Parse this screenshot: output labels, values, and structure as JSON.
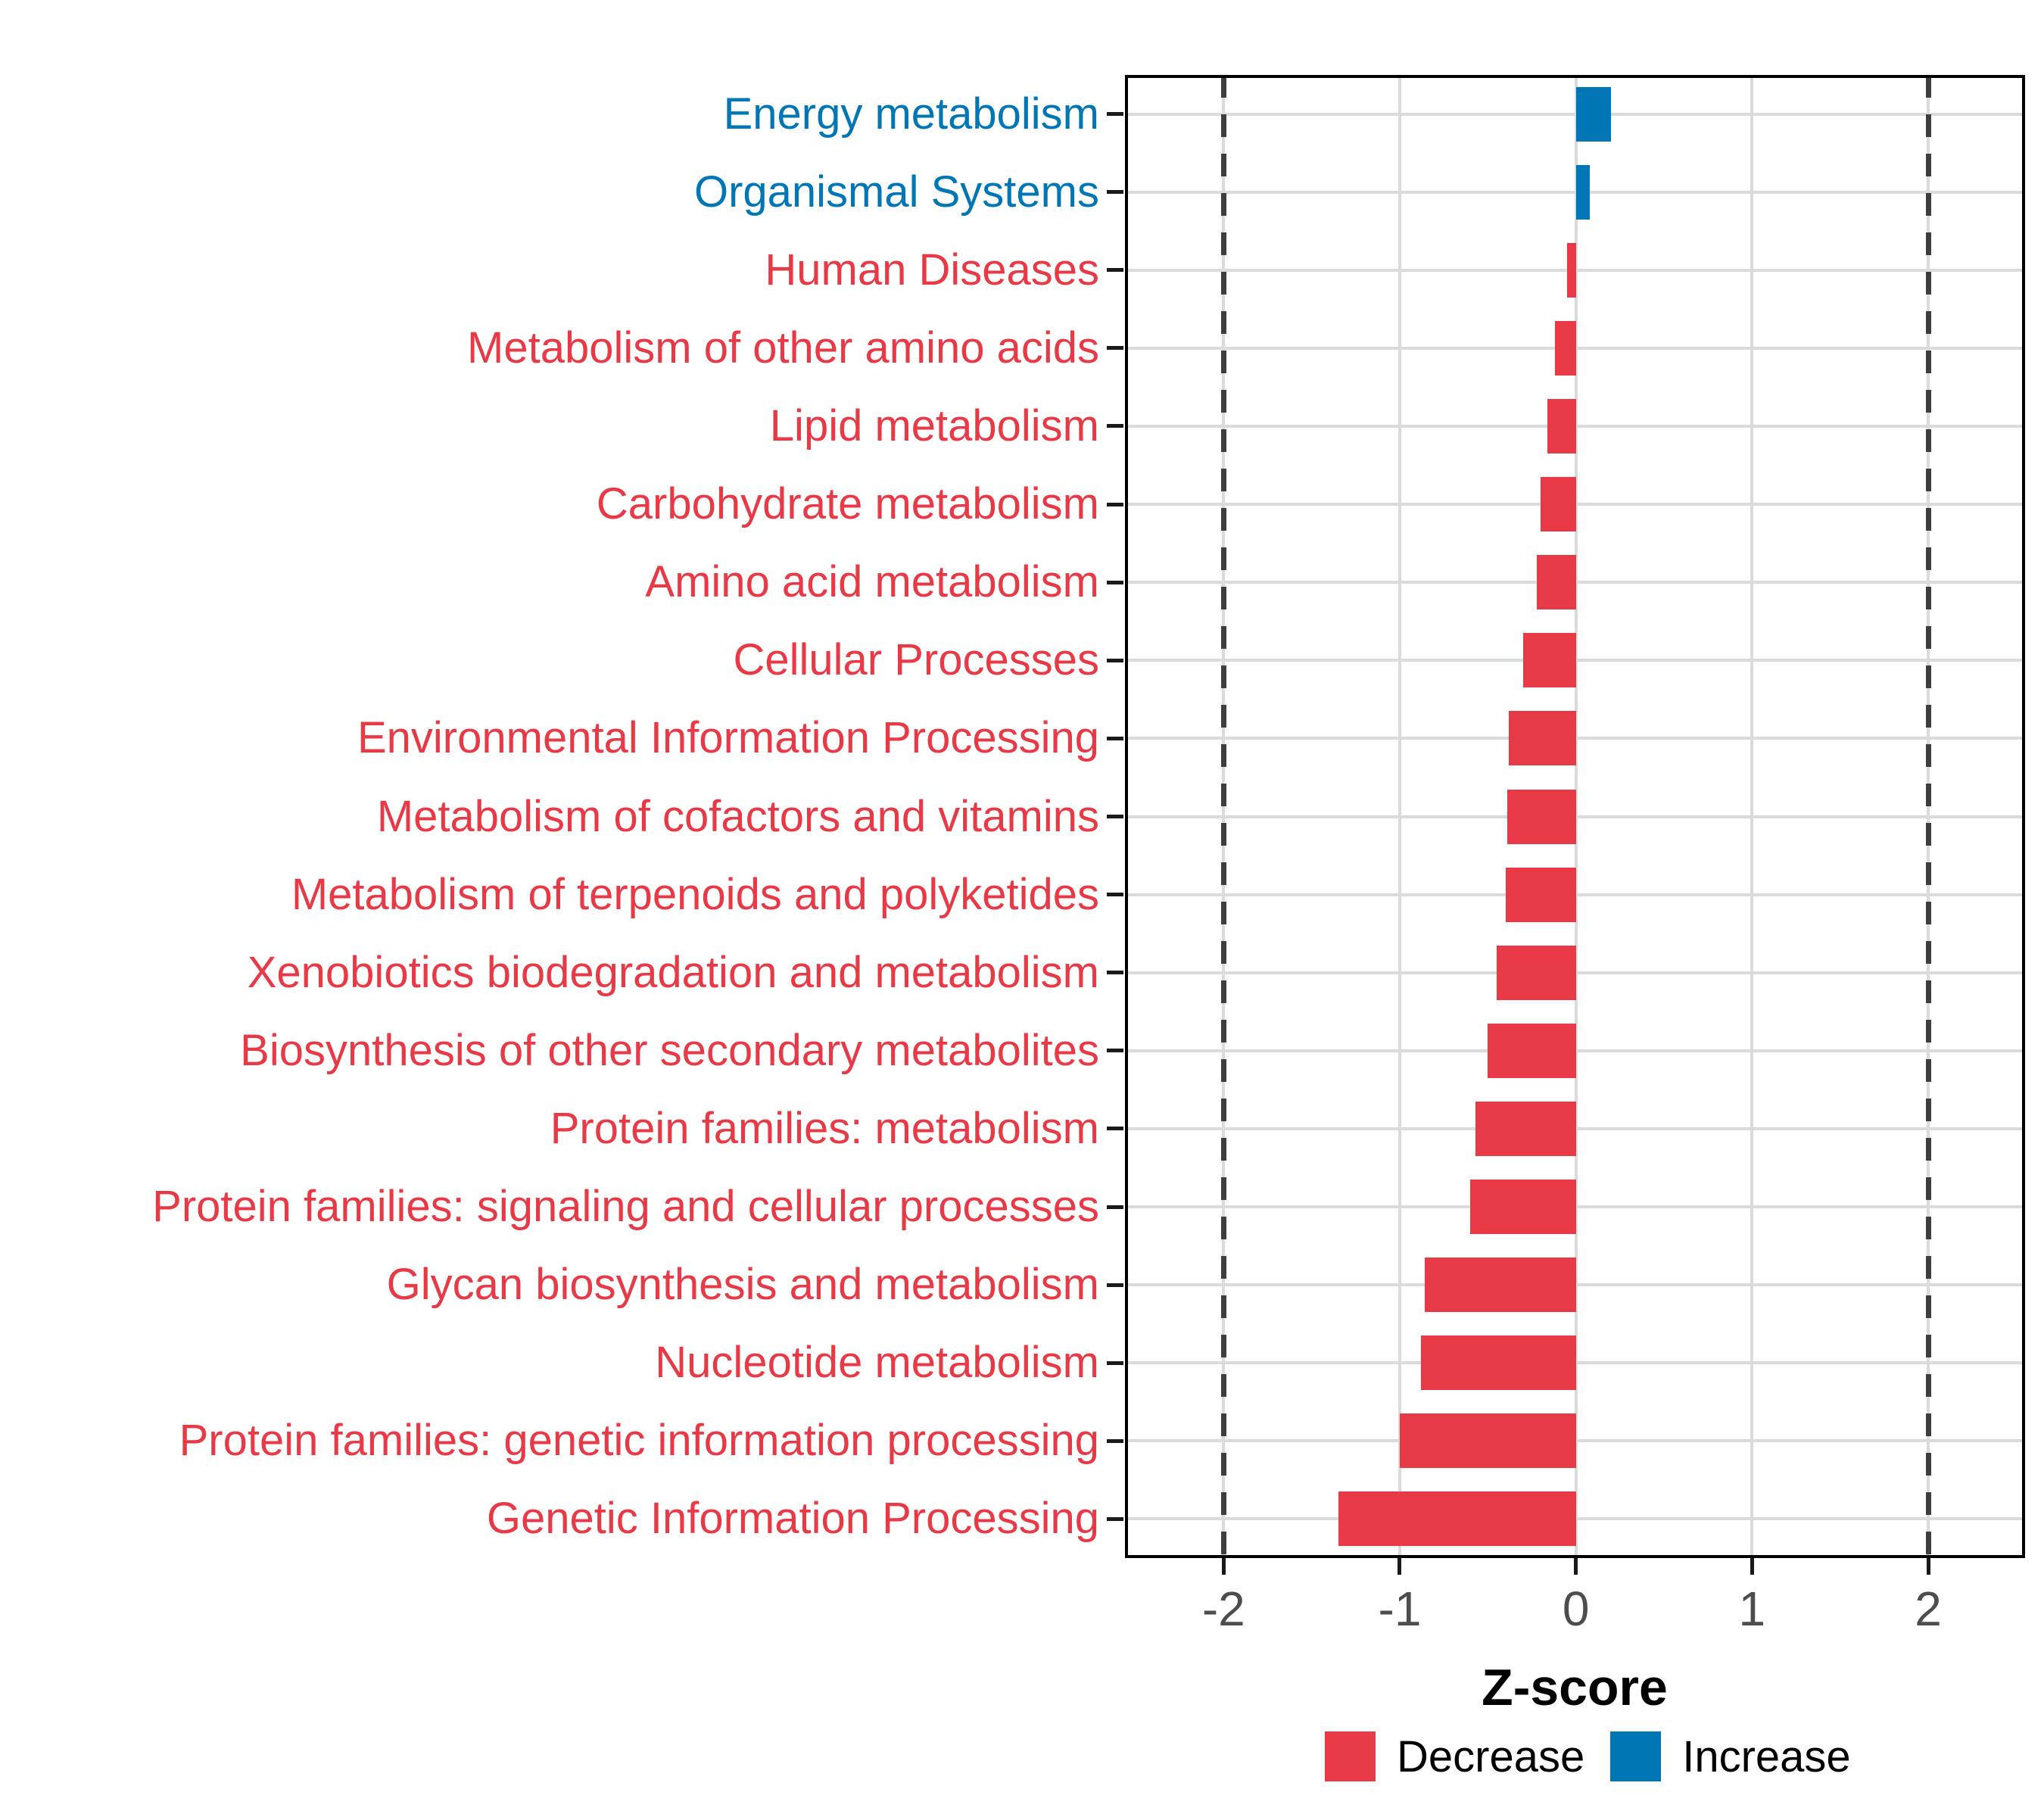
{
  "chart_data": {
    "type": "bar",
    "orientation": "horizontal",
    "title": "",
    "xlabel": "Z-score",
    "ylabel": "",
    "xlim": [
      -2.56,
      2.55
    ],
    "xticks": [
      -2,
      -1,
      0,
      1,
      2
    ],
    "xtick_labels": [
      "-2",
      "-1",
      "0",
      "1",
      "2"
    ],
    "grid": "major",
    "reference_lines": {
      "style": "dashed",
      "x": [
        -2,
        2
      ]
    },
    "legend_position": "bottom",
    "categories": [
      "Energy metabolism",
      "Organismal Systems",
      "Human Diseases",
      "Metabolism of other amino acids",
      "Lipid metabolism",
      "Carbohydrate metabolism",
      "Amino acid metabolism",
      "Cellular Processes",
      "Environmental Information Processing",
      "Metabolism of cofactors and vitamins",
      "Metabolism of terpenoids and polyketides",
      "Xenobiotics biodegradation and metabolism",
      "Biosynthesis of other secondary metabolites",
      "Protein families: metabolism",
      "Protein families: signaling and cellular processes",
      "Glycan biosynthesis and metabolism",
      "Nucleotide metabolism",
      "Protein families: genetic information processing",
      "Genetic Information Processing"
    ],
    "values": [
      0.2,
      0.08,
      -0.05,
      -0.12,
      -0.16,
      -0.2,
      -0.22,
      -0.3,
      -0.38,
      -0.39,
      -0.4,
      -0.45,
      -0.5,
      -0.57,
      -0.6,
      -0.86,
      -0.88,
      -1.0,
      -1.35
    ],
    "groups": [
      "increase",
      "increase",
      "decrease",
      "decrease",
      "decrease",
      "decrease",
      "decrease",
      "decrease",
      "decrease",
      "decrease",
      "decrease",
      "decrease",
      "decrease",
      "decrease",
      "decrease",
      "decrease",
      "decrease",
      "decrease",
      "decrease"
    ],
    "colors": {
      "decrease": "#E73946",
      "increase": "#0077B4",
      "grid": "#DBDBDB",
      "reference_line": "#3E3E3E",
      "tick_label": "#4D4D4D",
      "axis": "#000000"
    },
    "legend": [
      {
        "label": "Decrease",
        "color": "#E73946"
      },
      {
        "label": "Increase",
        "color": "#0077B4"
      }
    ]
  }
}
